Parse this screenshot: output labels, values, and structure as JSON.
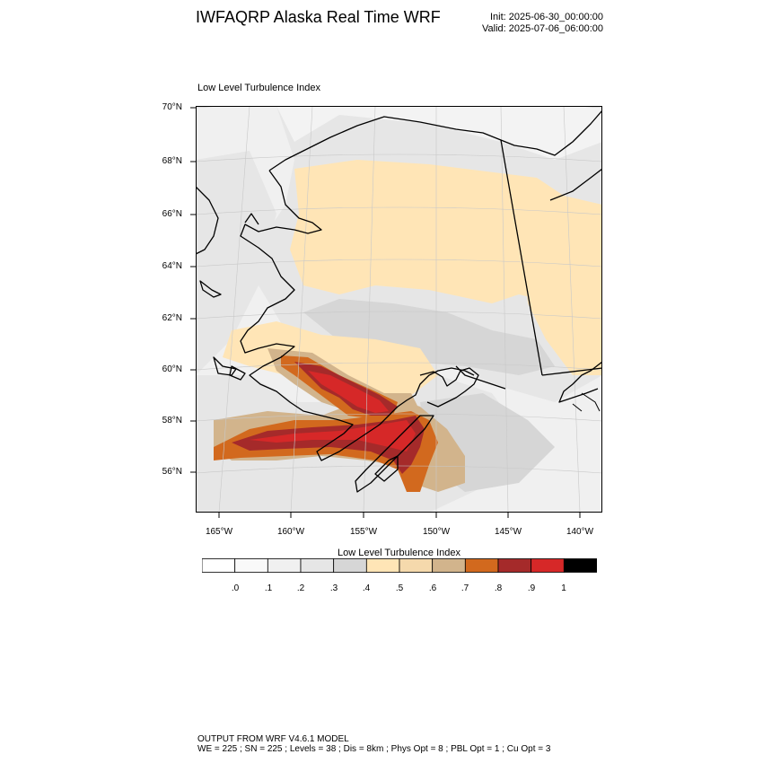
{
  "header": {
    "title": "IWFAQRP Alaska Real Time WRF",
    "init": "Init: 2025-06-30_00:00:00",
    "valid": "Valid: 2025-07-06_06:00:00"
  },
  "map": {
    "title": "Low Level Turbulence Index",
    "lat_labels": [
      "70°N",
      "68°N",
      "66°N",
      "64°N",
      "62°N",
      "60°N",
      "58°N",
      "56°N"
    ],
    "lon_labels": [
      "165°W",
      "160°W",
      "155°W",
      "150°W",
      "145°W",
      "140°W"
    ]
  },
  "colorbar": {
    "title": "Low Level Turbulence Index",
    "colors": [
      "#ffffff",
      "#f9f9f9",
      "#f0f0f0",
      "#e6e6e6",
      "#d6d6d6",
      "#ffe5b6",
      "#f5d9ac",
      "#d2b48c",
      "#d2691e",
      "#a52a2a",
      "#d62828",
      "#000000"
    ],
    "labels": [
      ".0",
      ".1",
      ".2",
      ".3",
      ".4",
      ".5",
      ".6",
      ".7",
      ".8",
      ".9",
      "1"
    ]
  },
  "footer": {
    "line1": "OUTPUT FROM WRF V4.6.1 MODEL",
    "line2": "WE = 225 ; SN = 225 ; Levels = 38 ; Dis = 8km ; Phys Opt = 8 ; PBL Opt = 1 ; Cu Opt = 3"
  }
}
